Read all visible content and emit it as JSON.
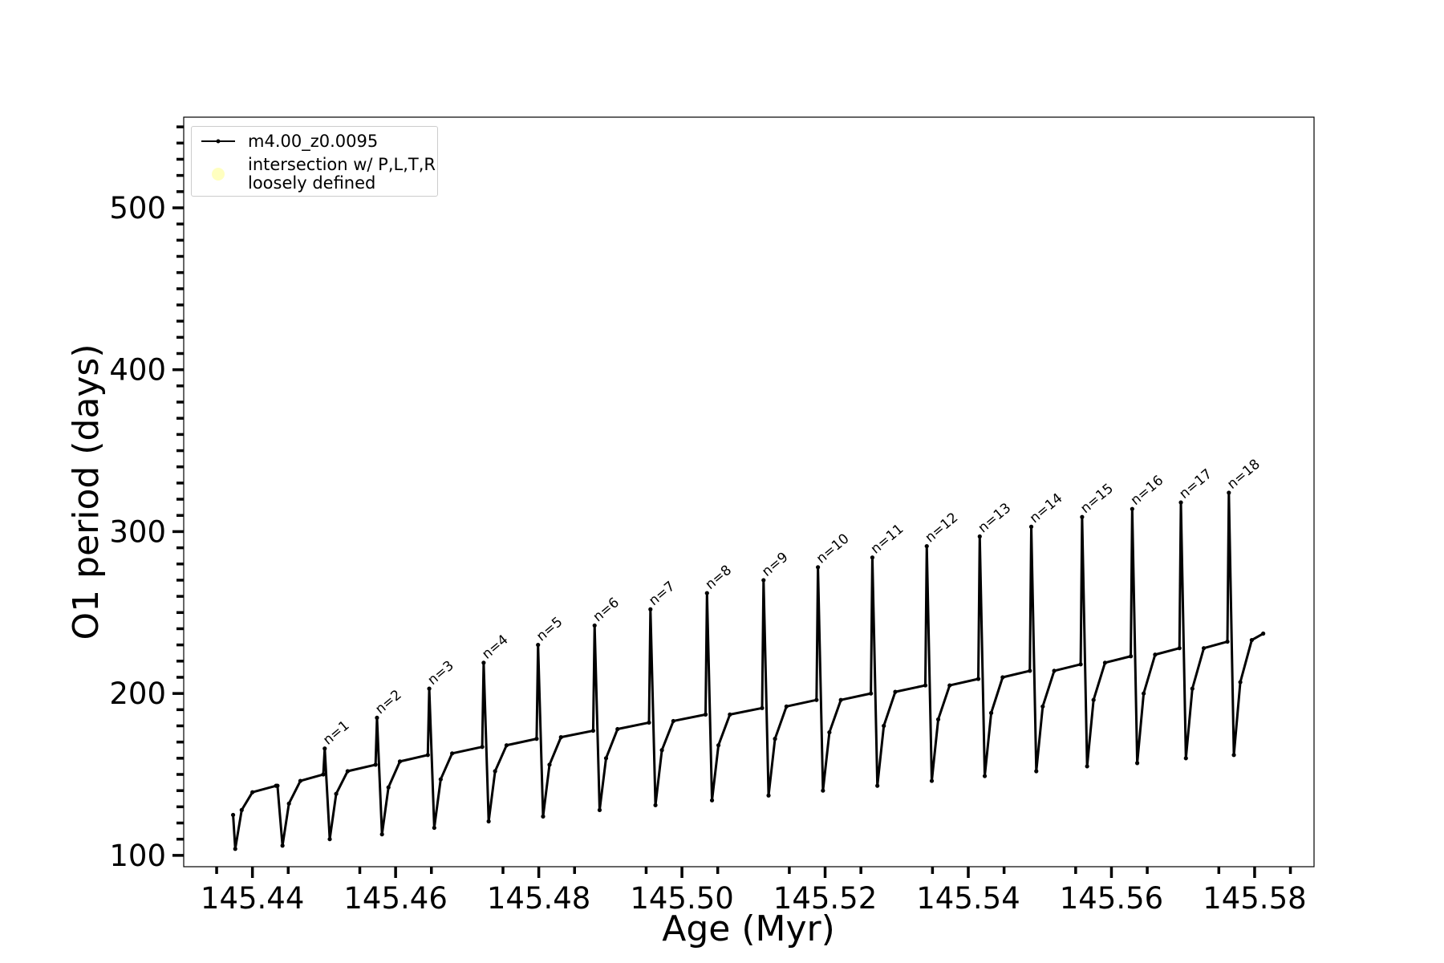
{
  "chart_data": {
    "type": "line",
    "xlabel": "Age (Myr)",
    "ylabel": "O1 period (days)",
    "xlim": [
      145.4304,
      145.5883
    ],
    "ylim": [
      93,
      556
    ],
    "xticks": [
      145.44,
      145.46,
      145.48,
      {
        "value": 145.5,
        "label": "145.50"
      },
      145.52,
      145.54,
      145.56,
      145.58
    ],
    "yticks": [
      100,
      200,
      300,
      400,
      500
    ],
    "xminorticks": [
      145.435,
      145.445,
      145.455,
      145.465,
      145.475,
      145.485,
      145.495,
      145.505,
      145.515,
      145.525,
      145.535,
      145.545,
      145.555,
      145.565,
      145.575,
      145.585
    ],
    "yminorticks": [
      110,
      120,
      130,
      140,
      150,
      160,
      170,
      180,
      190,
      210,
      220,
      230,
      240,
      250,
      260,
      270,
      280,
      290,
      310,
      320,
      330,
      340,
      350,
      360,
      370,
      380,
      390,
      410,
      420,
      430,
      440,
      450,
      460,
      470,
      480,
      490,
      510,
      520,
      530,
      540,
      550
    ],
    "legend": "upper left",
    "series": [
      {
        "name": "m4.00_z0.0095",
        "type": "line",
        "color": "#000000",
        "x": [
          145.4373,
          145.4376,
          145.4385,
          145.44,
          145.4433,
          145.4435,
          145.4442,
          145.4451,
          145.4467,
          145.4499,
          145.4501,
          145.4508,
          145.4517,
          145.4533,
          145.4572,
          145.4574,
          145.4581,
          145.459,
          145.4606,
          145.4645,
          145.4647,
          145.4654,
          145.4663,
          145.4679,
          145.4721,
          145.4723,
          145.473,
          145.4739,
          145.4755,
          145.4797,
          145.4799,
          145.4806,
          145.4815,
          145.4831,
          145.4876,
          145.4878,
          145.4885,
          145.4894,
          145.491,
          145.4954,
          145.4956,
          145.4963,
          145.4972,
          145.4988,
          145.5033,
          145.5035,
          145.5042,
          145.5051,
          145.5067,
          145.5112,
          145.5114,
          145.5121,
          145.513,
          145.5146,
          145.5188,
          145.519,
          145.5197,
          145.5206,
          145.5222,
          145.5264,
          145.5266,
          145.5273,
          145.5282,
          145.5298,
          145.534,
          145.5342,
          145.5349,
          145.5358,
          145.5374,
          145.5414,
          145.5416,
          145.5423,
          145.5432,
          145.5448,
          145.5486,
          145.5488,
          145.5495,
          145.5504,
          145.552,
          145.5557,
          145.5559,
          145.5566,
          145.5575,
          145.5591,
          145.5627,
          145.5629,
          145.5636,
          145.5645,
          145.5661,
          145.5695,
          145.5697,
          145.5704,
          145.5713,
          145.5729,
          145.5762,
          145.5764,
          145.5771,
          145.578,
          145.5796,
          145.5812
        ],
        "values": [
          125,
          104,
          128,
          139,
          143,
          143,
          106,
          132,
          146,
          150,
          166,
          110,
          138,
          152,
          156,
          185,
          113,
          142,
          158,
          162,
          203,
          117,
          147,
          163,
          167,
          219,
          121,
          152,
          168,
          172,
          230,
          124,
          156,
          173,
          177,
          242,
          128,
          160,
          178,
          182,
          252,
          131,
          165,
          183,
          187,
          262,
          134,
          168,
          187,
          191,
          270,
          137,
          172,
          192,
          196,
          278,
          140,
          176,
          196,
          200,
          284,
          143,
          180,
          201,
          205,
          291,
          146,
          184,
          205,
          209,
          297,
          149,
          188,
          210,
          214,
          303,
          152,
          192,
          214,
          218,
          309,
          155,
          196,
          219,
          223,
          314,
          157,
          200,
          224,
          228,
          318,
          160,
          203,
          228,
          232,
          324,
          162,
          207,
          233,
          237
        ]
      },
      {
        "name": "intersection w/ P,L,T,R\nloosely defined",
        "type": "scatter",
        "color": "#ffffc0",
        "x": [],
        "values": []
      }
    ],
    "annotations": [
      {
        "text": "n=1",
        "x": 145.4501,
        "y": 166
      },
      {
        "text": "n=2",
        "x": 145.4574,
        "y": 185
      },
      {
        "text": "n=3",
        "x": 145.4647,
        "y": 203
      },
      {
        "text": "n=4",
        "x": 145.4723,
        "y": 219
      },
      {
        "text": "n=5",
        "x": 145.4799,
        "y": 230
      },
      {
        "text": "n=6",
        "x": 145.4878,
        "y": 242
      },
      {
        "text": "n=7",
        "x": 145.4956,
        "y": 252
      },
      {
        "text": "n=8",
        "x": 145.5035,
        "y": 262
      },
      {
        "text": "n=9",
        "x": 145.5114,
        "y": 270
      },
      {
        "text": "n=10",
        "x": 145.519,
        "y": 278
      },
      {
        "text": "n=11",
        "x": 145.5266,
        "y": 284
      },
      {
        "text": "n=12",
        "x": 145.5342,
        "y": 291
      },
      {
        "text": "n=13",
        "x": 145.5416,
        "y": 297
      },
      {
        "text": "n=14",
        "x": 145.5488,
        "y": 303
      },
      {
        "text": "n=15",
        "x": 145.5559,
        "y": 309
      },
      {
        "text": "n=16",
        "x": 145.5629,
        "y": 314
      },
      {
        "text": "n=17",
        "x": 145.5697,
        "y": 318
      },
      {
        "text": "n=18",
        "x": 145.5764,
        "y": 324
      }
    ]
  }
}
